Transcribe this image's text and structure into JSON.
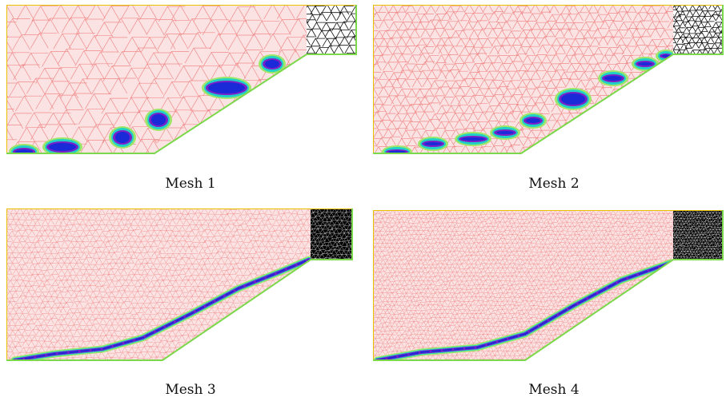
{
  "figure": {
    "panels": [
      {
        "caption": "Mesh 1",
        "mesh_level": 1,
        "crack": "discontinuous"
      },
      {
        "caption": "Mesh 2",
        "mesh_level": 2,
        "crack": "segmented"
      },
      {
        "caption": "Mesh 3",
        "mesh_level": 3,
        "crack": "nearly-continuous"
      },
      {
        "caption": "Mesh 4",
        "mesh_level": 4,
        "crack": "continuous"
      }
    ],
    "colors": {
      "mesh": "#f08a8a",
      "mesh_fill": "#fbe3e3",
      "insert_mesh": "#111111",
      "top_boundary": "#e8c000",
      "bottom_boundary": "#7bd84a",
      "damage_outer": "#9ee66a",
      "damage_mid": "#1fd0c8",
      "damage_inner": "#7a20c8",
      "damage_core": "#1a2ad8"
    }
  }
}
